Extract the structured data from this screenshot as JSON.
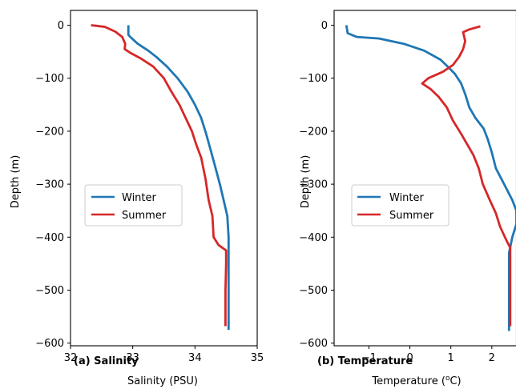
{
  "chart_data": [
    {
      "type": "line",
      "panel_label": "(a) Salinity",
      "xlabel": "Salinity (PSU)",
      "ylabel": "Depth (m)",
      "xlim": [
        32,
        35
      ],
      "ylim": [
        -605,
        28
      ],
      "xticks": [
        32,
        33,
        34,
        35
      ],
      "yticks": [
        0,
        -100,
        -200,
        -300,
        -400,
        -500,
        -600
      ],
      "xtick_labels": [
        "32",
        "33",
        "34",
        "35"
      ],
      "ytick_labels": [
        "0",
        "−100",
        "−200",
        "−300",
        "−400",
        "−500",
        "−600"
      ],
      "legend": {
        "position": "center-left",
        "entries": [
          "Winter",
          "Summer"
        ]
      },
      "series": [
        {
          "name": "Winter",
          "color": "#1f77b4",
          "points": [
            [
              32.93,
              0
            ],
            [
              32.93,
              -18
            ],
            [
              32.96,
              -22
            ],
            [
              33.08,
              -35
            ],
            [
              33.25,
              -48
            ],
            [
              33.38,
              -60
            ],
            [
              33.55,
              -78
            ],
            [
              33.72,
              -100
            ],
            [
              33.88,
              -125
            ],
            [
              34.0,
              -150
            ],
            [
              34.1,
              -175
            ],
            [
              34.18,
              -205
            ],
            [
              34.25,
              -235
            ],
            [
              34.32,
              -265
            ],
            [
              34.4,
              -300
            ],
            [
              34.46,
              -330
            ],
            [
              34.52,
              -360
            ],
            [
              34.54,
              -400
            ],
            [
              34.54,
              -450
            ],
            [
              34.54,
              -500
            ],
            [
              34.54,
              -575
            ]
          ]
        },
        {
          "name": "Summer",
          "color": "#d62728",
          "points": [
            [
              32.33,
              0
            ],
            [
              32.55,
              -3
            ],
            [
              32.72,
              -12
            ],
            [
              32.83,
              -22
            ],
            [
              32.88,
              -35
            ],
            [
              32.87,
              -45
            ],
            [
              32.96,
              -52
            ],
            [
              33.12,
              -62
            ],
            [
              33.33,
              -78
            ],
            [
              33.5,
              -100
            ],
            [
              33.62,
              -125
            ],
            [
              33.75,
              -150
            ],
            [
              33.85,
              -175
            ],
            [
              33.95,
              -200
            ],
            [
              34.02,
              -225
            ],
            [
              34.1,
              -250
            ],
            [
              34.17,
              -290
            ],
            [
              34.22,
              -330
            ],
            [
              34.28,
              -360
            ],
            [
              34.3,
              -400
            ],
            [
              34.38,
              -415
            ],
            [
              34.5,
              -425
            ],
            [
              34.5,
              -450
            ],
            [
              34.49,
              -500
            ],
            [
              34.49,
              -568
            ]
          ]
        }
      ]
    },
    {
      "type": "line",
      "panel_label": "(b) Temperature",
      "xlabel": "Temperature (°C)",
      "ylabel": "Depth (m)",
      "xlim": [
        -1.85,
        2.6
      ],
      "ylim": [
        -605,
        28
      ],
      "xticks": [
        -1,
        0,
        1,
        2
      ],
      "yticks": [
        0,
        -100,
        -200,
        -300,
        -400,
        -500,
        -600
      ],
      "xtick_labels": [
        "−1",
        "0",
        "1",
        "2"
      ],
      "ytick_labels": [
        "0",
        "−100",
        "−200",
        "−300",
        "−400",
        "−500",
        "−600"
      ],
      "legend": {
        "position": "center-left",
        "entries": [
          "Winter",
          "Summer"
        ]
      },
      "series": [
        {
          "name": "Winter",
          "color": "#1f77b4",
          "points": [
            [
              -1.55,
              0
            ],
            [
              -1.52,
              -15
            ],
            [
              -1.3,
              -22
            ],
            [
              -0.75,
              -25
            ],
            [
              -0.15,
              -35
            ],
            [
              0.35,
              -48
            ],
            [
              0.75,
              -65
            ],
            [
              0.95,
              -80
            ],
            [
              1.1,
              -92
            ],
            [
              1.25,
              -110
            ],
            [
              1.35,
              -130
            ],
            [
              1.45,
              -155
            ],
            [
              1.6,
              -175
            ],
            [
              1.8,
              -195
            ],
            [
              1.9,
              -215
            ],
            [
              2.0,
              -240
            ],
            [
              2.1,
              -270
            ],
            [
              2.3,
              -300
            ],
            [
              2.5,
              -330
            ],
            [
              2.6,
              -350
            ],
            [
              2.6,
              -375
            ],
            [
              2.5,
              -400
            ],
            [
              2.42,
              -430
            ],
            [
              2.42,
              -500
            ],
            [
              2.42,
              -577
            ]
          ]
        },
        {
          "name": "Summer",
          "color": "#d62728",
          "points": [
            [
              1.72,
              -2
            ],
            [
              1.45,
              -8
            ],
            [
              1.3,
              -13
            ],
            [
              1.35,
              -30
            ],
            [
              1.3,
              -45
            ],
            [
              1.2,
              -60
            ],
            [
              1.05,
              -75
            ],
            [
              0.8,
              -88
            ],
            [
              0.45,
              -100
            ],
            [
              0.3,
              -110
            ],
            [
              0.5,
              -120
            ],
            [
              0.7,
              -135
            ],
            [
              0.9,
              -155
            ],
            [
              1.05,
              -180
            ],
            [
              1.25,
              -205
            ],
            [
              1.4,
              -225
            ],
            [
              1.55,
              -245
            ],
            [
              1.68,
              -270
            ],
            [
              1.78,
              -300
            ],
            [
              1.95,
              -330
            ],
            [
              2.1,
              -355
            ],
            [
              2.2,
              -380
            ],
            [
              2.35,
              -405
            ],
            [
              2.45,
              -420
            ],
            [
              2.45,
              -450
            ],
            [
              2.45,
              -500
            ],
            [
              2.45,
              -568
            ]
          ]
        }
      ]
    }
  ]
}
